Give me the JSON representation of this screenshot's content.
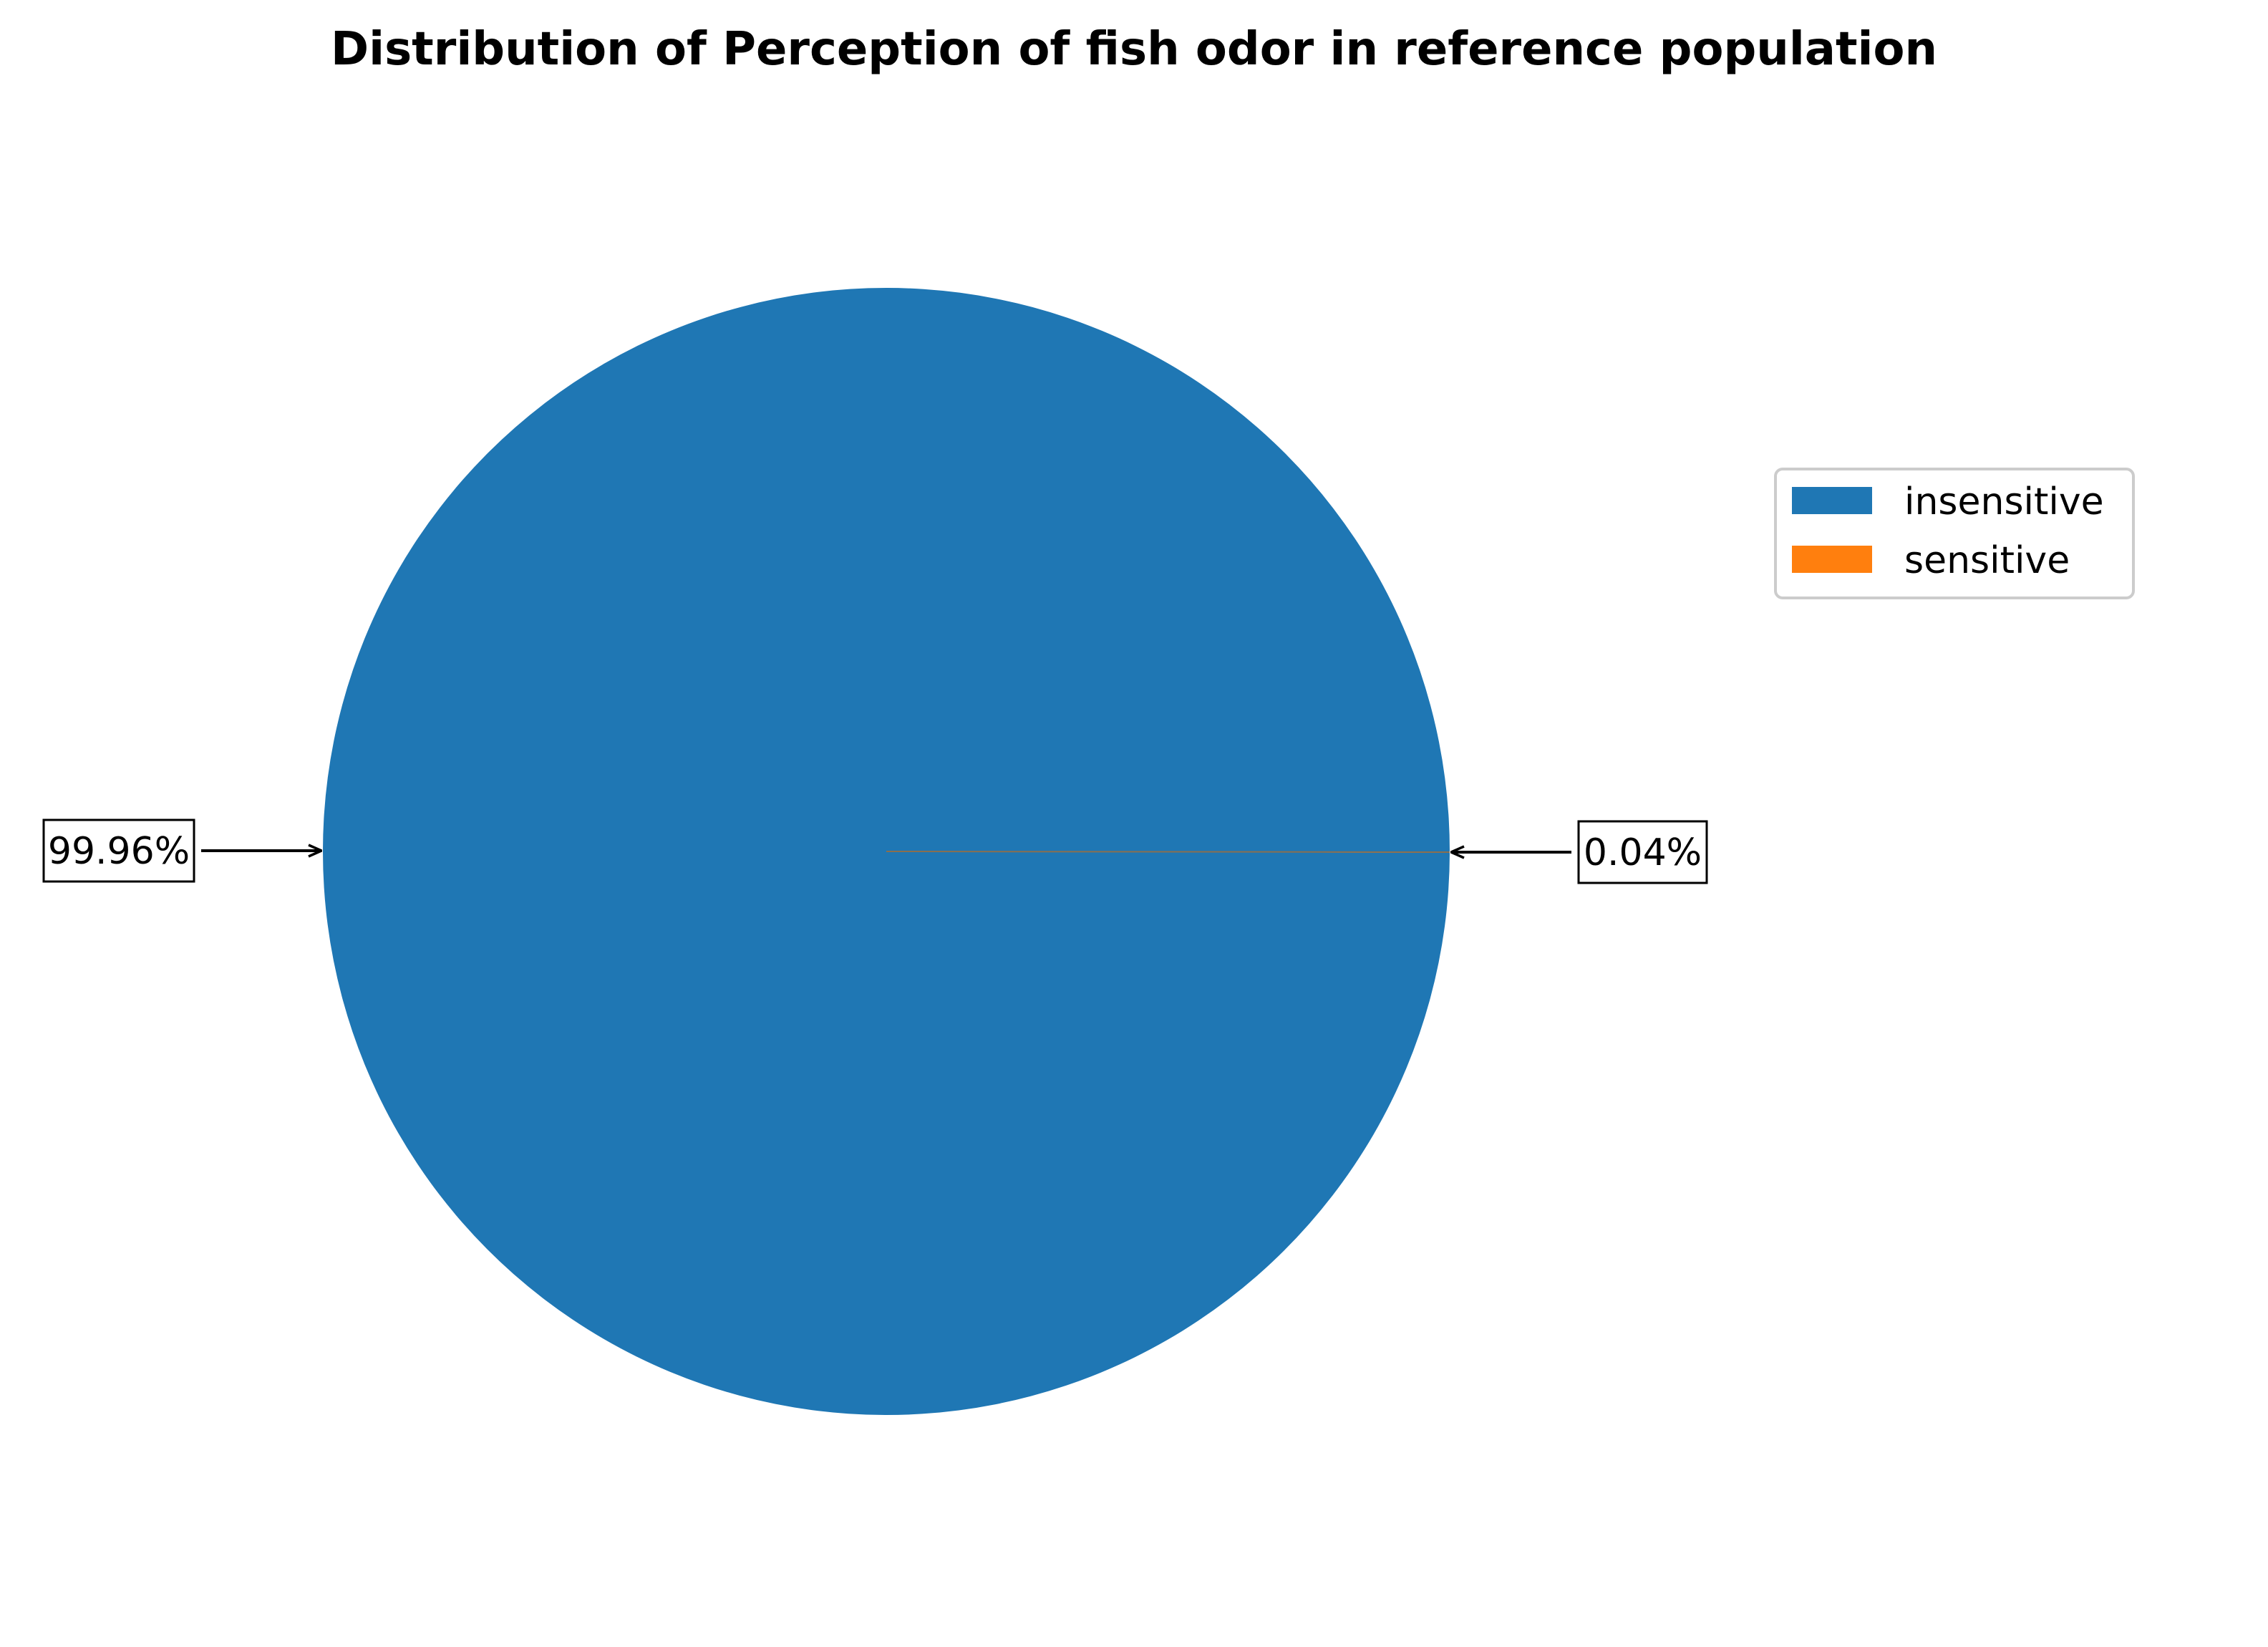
{
  "chart_data": {
    "type": "pie",
    "title": "Distribution of Perception of fish odor in reference population",
    "categories": [
      "insensitive",
      "sensitive"
    ],
    "values": [
      99.96,
      0.04
    ],
    "value_unit": "%",
    "data_labels": [
      "99.96%",
      "0.04%"
    ],
    "colors": [
      "#1f77b4",
      "#ff7f0e"
    ],
    "legend": {
      "placement": "right",
      "entries": [
        "insensitive",
        "sensitive"
      ]
    },
    "start_angle_deg": 0,
    "direction": "counterclockwise"
  }
}
